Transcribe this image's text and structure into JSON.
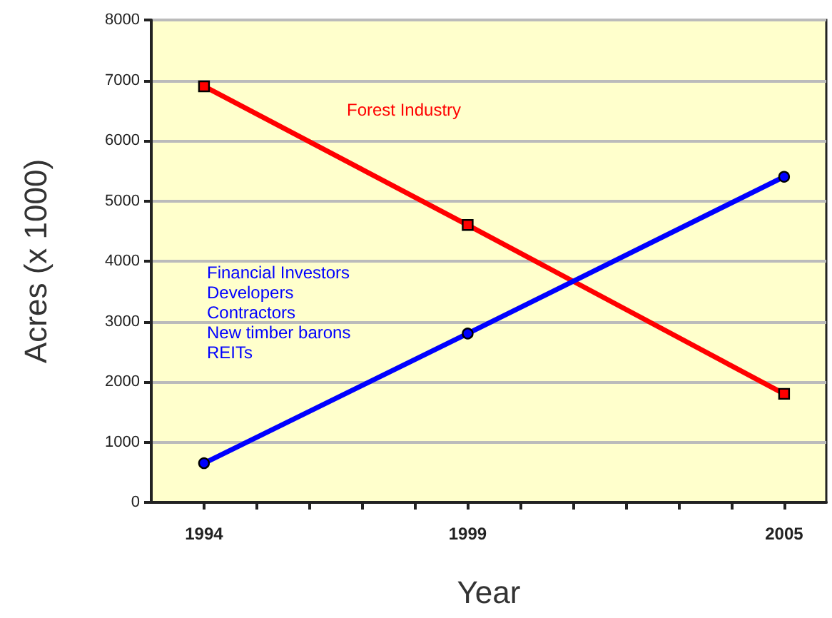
{
  "chart_data": {
    "type": "line",
    "xlabel": "Year",
    "ylabel": "Acres (x 1000)",
    "x": [
      1994,
      1999,
      2005
    ],
    "series": [
      {
        "name": "Forest Industry",
        "color": "#ff0000",
        "marker": "square",
        "values": [
          6900,
          4600,
          1800
        ]
      },
      {
        "name": "Financial Investors\nDevelopers\nContractors\nNew timber barons\nREITs",
        "color": "#0000ff",
        "marker": "circle",
        "values": [
          650,
          2800,
          5400
        ]
      }
    ],
    "xlim": [
      1993,
      2005.8
    ],
    "xticks": [
      1994,
      {
        "value": 1995,
        "label": null
      },
      {
        "value": 1996,
        "label": null
      },
      {
        "value": 1997,
        "label": null
      },
      {
        "value": 1998,
        "label": null
      },
      1999,
      {
        "value": 2000,
        "label": null
      },
      {
        "value": 2001,
        "label": null
      },
      {
        "value": 2002,
        "label": null
      },
      {
        "value": 2003,
        "label": null
      },
      {
        "value": 2004,
        "label": null
      },
      2005
    ],
    "ylim": [
      0,
      8000
    ],
    "yticks": [
      0,
      1000,
      2000,
      3000,
      4000,
      5000,
      6000,
      7000,
      8000
    ],
    "grid": "y",
    "legend": false
  }
}
